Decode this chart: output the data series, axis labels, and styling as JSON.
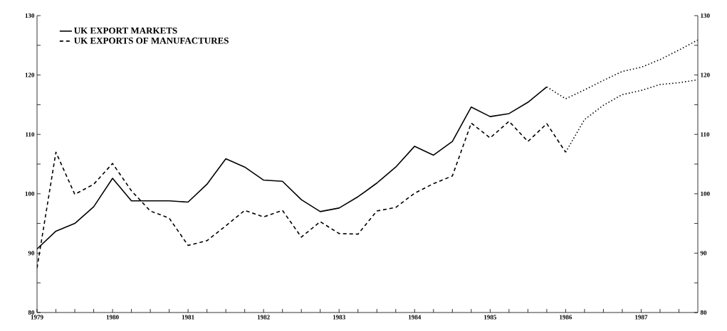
{
  "chart_data": {
    "type": "line",
    "xlim": [
      1979,
      1987.75
    ],
    "xticks": [
      1979,
      {
        "value": 1979.25,
        "label": null
      },
      {
        "value": 1979.5,
        "label": null
      },
      {
        "value": 1979.75,
        "label": null
      },
      1980,
      {
        "value": 1980.25,
        "label": null
      },
      {
        "value": 1980.5,
        "label": null
      },
      {
        "value": 1980.75,
        "label": null
      },
      1981,
      {
        "value": 1981.25,
        "label": null
      },
      {
        "value": 1981.5,
        "label": null
      },
      {
        "value": 1981.75,
        "label": null
      },
      1982,
      {
        "value": 1982.25,
        "label": null
      },
      {
        "value": 1982.5,
        "label": null
      },
      {
        "value": 1982.75,
        "label": null
      },
      1983,
      {
        "value": 1983.25,
        "label": null
      },
      {
        "value": 1983.5,
        "label": null
      },
      {
        "value": 1983.75,
        "label": null
      },
      1984,
      {
        "value": 1984.25,
        "label": null
      },
      {
        "value": 1984.5,
        "label": null
      },
      {
        "value": 1984.75,
        "label": null
      },
      1985,
      {
        "value": 1985.25,
        "label": null
      },
      {
        "value": 1985.5,
        "label": null
      },
      {
        "value": 1985.75,
        "label": null
      },
      1986,
      {
        "value": 1986.25,
        "label": null
      },
      {
        "value": 1986.5,
        "label": null
      },
      {
        "value": 1986.75,
        "label": null
      },
      1987,
      {
        "value": 1987.25,
        "label": null
      },
      {
        "value": 1987.5,
        "label": null
      }
    ],
    "ylim": [
      80,
      130
    ],
    "yticks": [
      80,
      {
        "value": 85,
        "label": null
      },
      90,
      {
        "value": 95,
        "label": null
      },
      100,
      {
        "value": 105,
        "label": null
      },
      110,
      {
        "value": 115,
        "label": null
      },
      120,
      {
        "value": 125,
        "label": null
      },
      130
    ],
    "y2lim": [
      80,
      130
    ],
    "y2ticks": [
      80,
      {
        "value": 85,
        "label": null
      },
      90,
      {
        "value": 95,
        "label": null
      },
      100,
      {
        "value": 105,
        "label": null
      },
      110,
      {
        "value": 115,
        "label": null
      },
      120,
      {
        "value": 125,
        "label": null
      },
      130
    ],
    "legend": "top left",
    "series": [
      {
        "name": "UK EXPORT MARKETS",
        "color": "#000000",
        "line_style": "solid",
        "x": [
          1979,
          1979.25,
          1979.5,
          1979.75,
          1980,
          1980.25,
          1980.5,
          1980.75,
          1981,
          1981.25,
          1981.5,
          1981.75,
          1982,
          1982.25,
          1982.5,
          1982.75,
          1983,
          1983.25,
          1983.5,
          1983.75,
          1984,
          1984.25,
          1984.5,
          1984.75,
          1985,
          1985.25,
          1985.5,
          1985.75
        ],
        "values": [
          90.7,
          93.7,
          95.0,
          97.8,
          102.6,
          98.8,
          98.8,
          98.8,
          98.6,
          101.6,
          105.9,
          104.5,
          102.3,
          102.1,
          99.0,
          97.0,
          97.6,
          99.5,
          101.8,
          104.5,
          108.0,
          106.5,
          108.8,
          114.6,
          113.0,
          113.5,
          115.4,
          118.0
        ]
      },
      {
        "name": "UK EXPORTS OF MANUFACTURES",
        "color": "#000000",
        "line_style": "dashed",
        "x": [
          1979,
          1979.25,
          1979.5,
          1979.75,
          1980,
          1980.25,
          1980.5,
          1980.75,
          1981,
          1981.25,
          1981.5,
          1981.75,
          1982,
          1982.25,
          1982.5,
          1982.75,
          1983,
          1983.25,
          1983.5,
          1983.75,
          1984,
          1984.25,
          1984.5,
          1984.75,
          1985,
          1985.25,
          1985.5,
          1985.75,
          1986
        ],
        "values": [
          87.5,
          107.0,
          99.9,
          101.6,
          105.1,
          100.5,
          97.1,
          95.9,
          91.3,
          92.1,
          94.6,
          97.2,
          96.1,
          97.2,
          92.7,
          95.3,
          93.3,
          93.2,
          97.1,
          97.7,
          100.1,
          101.7,
          103.0,
          111.9,
          109.4,
          112.2,
          108.8,
          111.8,
          107.0
        ]
      },
      {
        "color": "#000000",
        "line_style": "dotted",
        "x": [
          1985.75,
          1986,
          1986.25,
          1986.5,
          1986.75,
          1987,
          1987.25,
          1987.5,
          1987.75
        ],
        "values": [
          118.0,
          116.0,
          117.5,
          119.1,
          120.6,
          121.3,
          122.6,
          124.2,
          125.9
        ]
      },
      {
        "color": "#000000",
        "line_style": "dotted",
        "x": [
          1986,
          1986.25,
          1986.5,
          1986.75,
          1987,
          1987.25,
          1987.5,
          1987.75
        ],
        "values": [
          107.0,
          112.5,
          114.9,
          116.7,
          117.4,
          118.4,
          118.7,
          119.2
        ]
      }
    ]
  }
}
